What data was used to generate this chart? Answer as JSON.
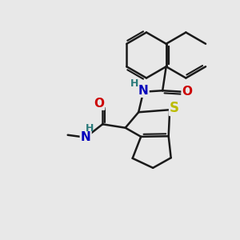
{
  "background_color": "#e8e8e8",
  "bond_color": "#1a1a1a",
  "bond_width": 1.8,
  "atom_colors": {
    "N": "#0000bb",
    "O": "#cc0000",
    "S": "#bbbb00",
    "H": "#2a7a7a",
    "C": "#1a1a1a"
  },
  "font_size_atom": 10,
  "figsize": [
    3.0,
    3.0
  ],
  "dpi": 100
}
